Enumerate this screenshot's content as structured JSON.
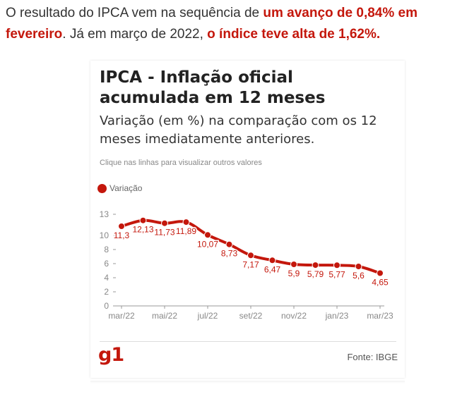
{
  "intro": {
    "part1": "O resultado do IPCA vem na sequência de ",
    "part2": "um avanço de 0,84% em fevereiro",
    "part3": ". Já em março de 2022, ",
    "part4": "o índice teve alta de 1,62%."
  },
  "colors": {
    "accent": "#c4170c",
    "line": "#c4170c",
    "axis": "#999999",
    "tick_text": "#888888"
  },
  "card": {
    "hint": "Clique nas linhas para visualizar outros valores",
    "logo": "g1",
    "source": "Fonte: IBGE"
  },
  "chart_data": {
    "type": "line",
    "title": "IPCA - Inflação oficial acumulada em 12 meses",
    "subtitle": "Variação (em %) na comparação com os 12 meses imediatamente anteriores.",
    "xlabel": "",
    "ylabel": "",
    "x_tick_labels": [
      "mar/22",
      "mai/22",
      "jul/22",
      "set/22",
      "nov/22",
      "jan/23",
      "mar/23"
    ],
    "x_tick_indices": [
      0,
      2,
      4,
      6,
      8,
      10,
      12
    ],
    "ylim": [
      0,
      13
    ],
    "y_ticks": [
      0,
      2,
      4,
      6,
      8,
      10,
      13
    ],
    "grid": false,
    "legend_position": "top-left",
    "series": [
      {
        "name": "Variação",
        "categories": [
          "mar/22",
          "abr/22",
          "mai/22",
          "jun/22",
          "jul/22",
          "ago/22",
          "set/22",
          "out/22",
          "nov/22",
          "dez/22",
          "jan/23",
          "fev/23",
          "mar/23"
        ],
        "values": [
          11.3,
          12.13,
          11.73,
          11.89,
          10.07,
          8.73,
          7.17,
          6.47,
          5.9,
          5.79,
          5.77,
          5.6,
          4.65
        ],
        "labels": [
          "11,3",
          "12,13",
          "11,73",
          "11,89",
          "10,07",
          "8,73",
          "7,17",
          "6,47",
          "5,9",
          "5,79",
          "5,77",
          "5,6",
          "4,65"
        ]
      }
    ]
  }
}
